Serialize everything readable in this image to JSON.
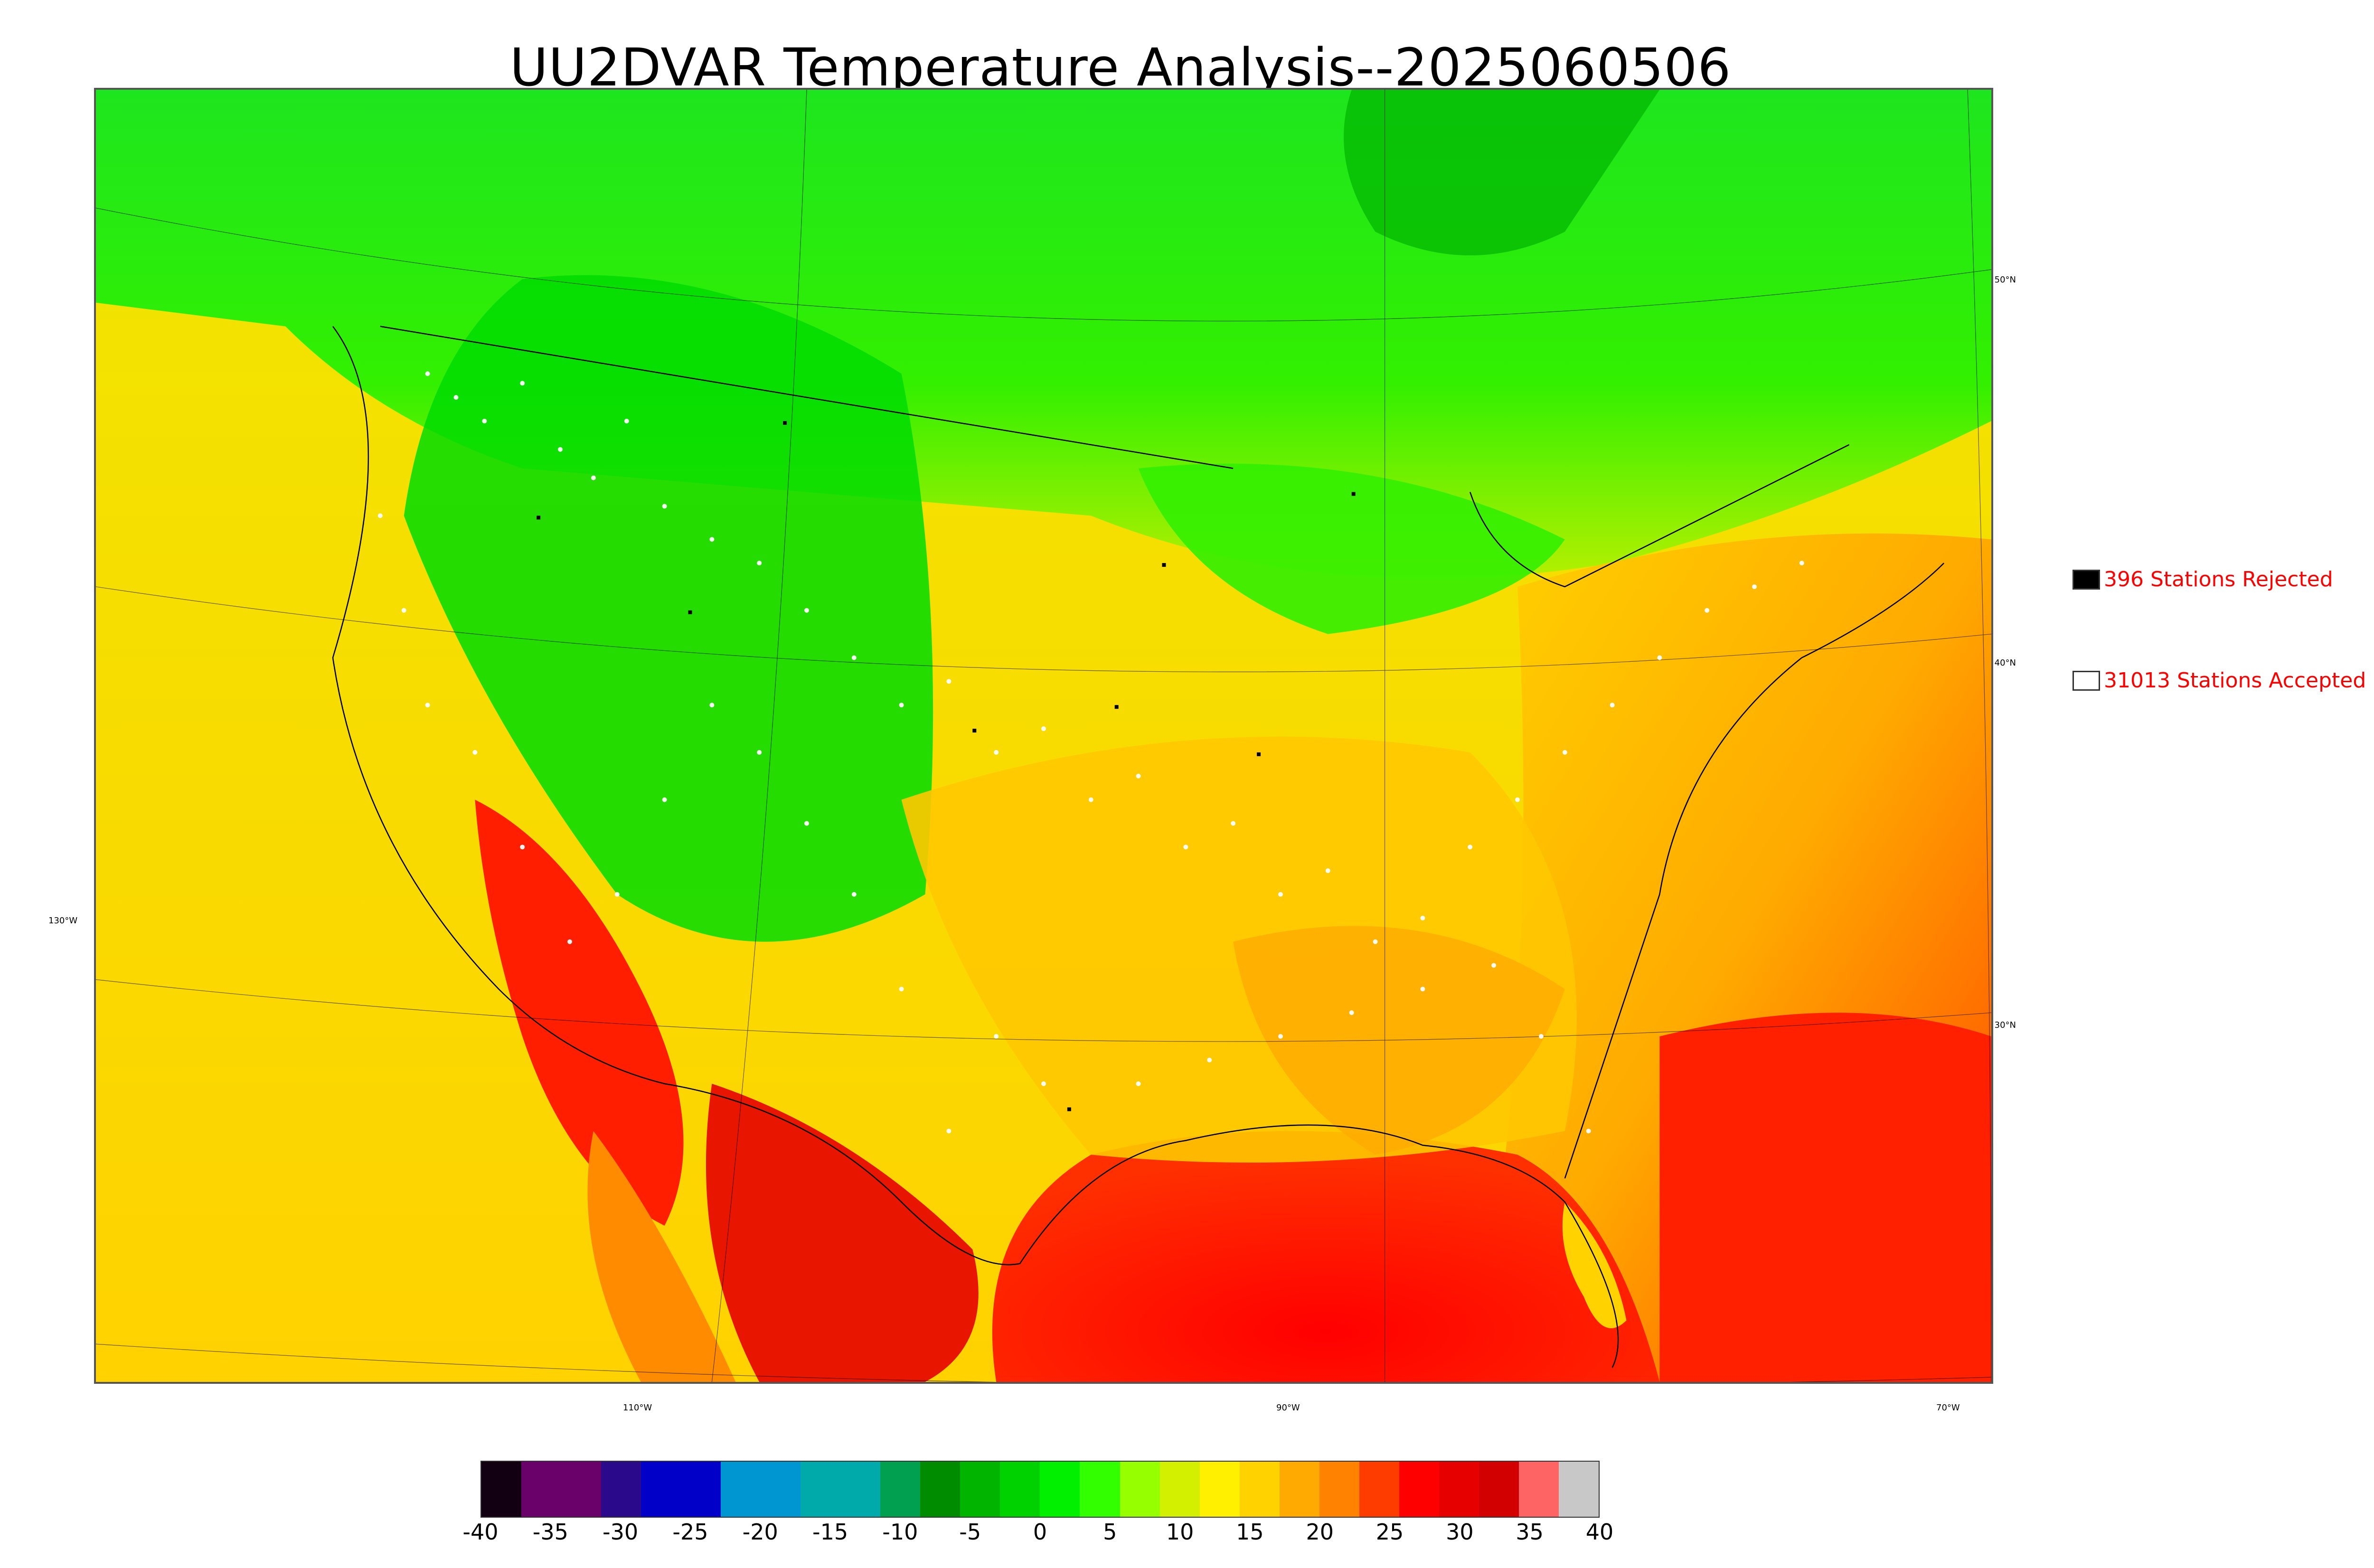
{
  "title": "UU2DVAR Temperature Analysis--2025060506",
  "legend": {
    "rejected": {
      "label": "396 Stations Rejected",
      "swatch_color": "#000000"
    },
    "accepted": {
      "label": "31013 Stations Accepted",
      "swatch_color": "#ffffff"
    }
  },
  "grid_labels": {
    "lat_50": "50°N",
    "lat_40": "40°N",
    "lat_30": "30°N",
    "lon_130": "130°W",
    "lon_110": "110°W",
    "lon_90": "90°W",
    "lon_70": "70°W"
  },
  "colorbar": {
    "ticks": [
      "-40",
      "-35",
      "-30",
      "-25",
      "-20",
      "-15",
      "-10",
      "-5",
      "0",
      "5",
      "10",
      "15",
      "20",
      "25",
      "30",
      "35",
      "40"
    ],
    "colors": [
      "#120012",
      "#6a006a",
      "#6a006a",
      "#2a0a8a",
      "#0000c8",
      "#0000c8",
      "#0096d2",
      "#0096d2",
      "#00aaaa",
      "#00aaaa",
      "#00a050",
      "#008c00",
      "#00b400",
      "#00d200",
      "#00f000",
      "#32ff00",
      "#96ff00",
      "#d2f000",
      "#fff000",
      "#ffd200",
      "#ffaa00",
      "#ff8200",
      "#ff3c00",
      "#ff0000",
      "#e60000",
      "#d20000",
      "#ff6464",
      "#c8c8c8"
    ]
  },
  "icons": {
    "map": "temperature-map",
    "legend_rejected": "black-square-icon",
    "legend_accepted": "white-square-icon"
  }
}
